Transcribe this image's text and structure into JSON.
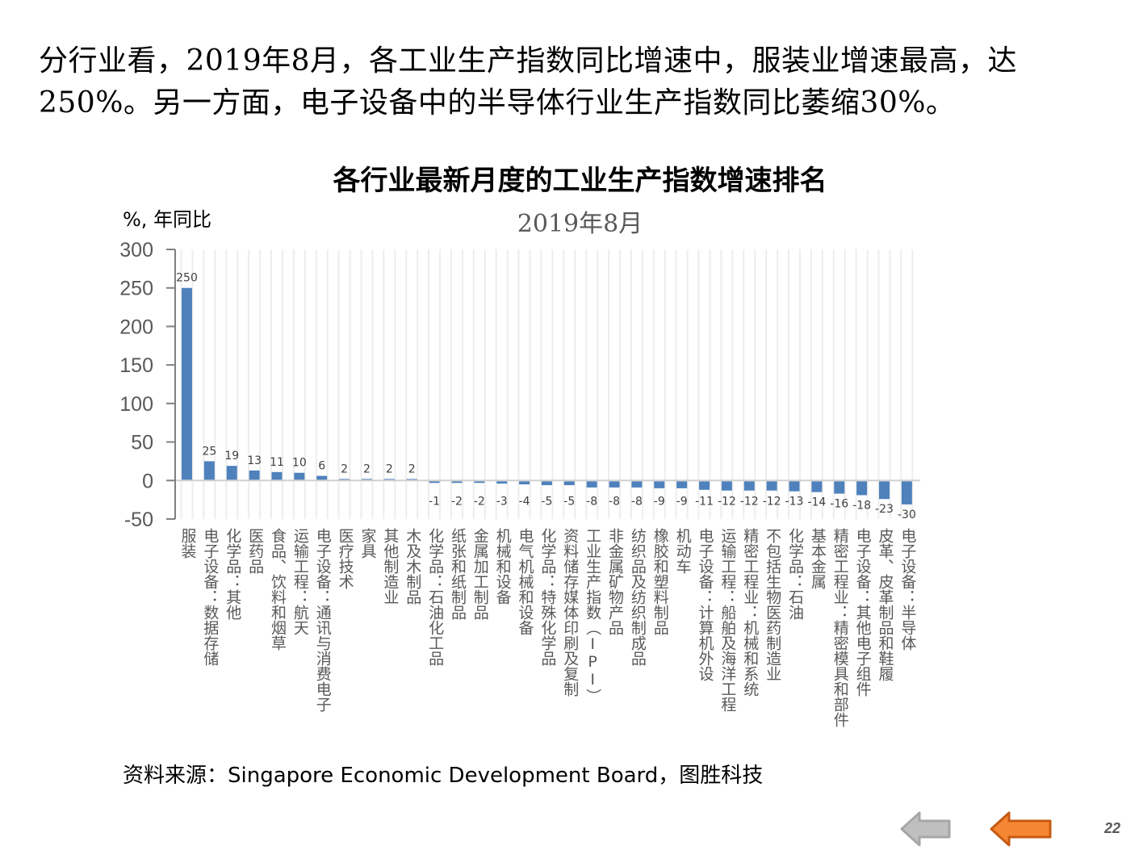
{
  "headline": {
    "line1": "分行业看，2019年8月，各工业生产指数同比增速中，服装业增速最高，达",
    "line2": "250%。另一方面，电子设备中的半导体行业生产指数同比萎缩30%。"
  },
  "chart_data": {
    "type": "bar",
    "title": "各行业最新月度的工业生产指数增速排名",
    "subtitle": "2019年8月",
    "ylabel": "%, 年同比",
    "xlabel": "",
    "ylim": [
      -50,
      300
    ],
    "yticks": [
      300,
      250,
      200,
      150,
      100,
      50,
      0,
      -50
    ],
    "ytick_labels": [
      "300",
      "250",
      "200",
      "150",
      "100",
      "50",
      "0",
      "-50"
    ],
    "grid": "vertical",
    "legend": "none",
    "bar_color": "#4f81bd",
    "categories": [
      "服装",
      "电子设备：数据存储",
      "化学品：其他",
      "医药品",
      "食品、饮料和烟草",
      "运输工程：航天",
      "电子设备：通讯与消费电子",
      "医疗技术",
      "家具",
      "其他制造业",
      "木及木制品",
      "化学品：石油化工品",
      "纸张和纸制品",
      "金属加工制品",
      "机械和设备",
      "电气机械和设备",
      "化学品：特殊化学品",
      "资料储存媒体印刷及复制",
      "工业生产指数（IPI）",
      "非金属矿物产品",
      "纺织品及纺织制成品",
      "橡胶和塑料制品",
      "机动车",
      "电子设备：计算机外设",
      "运输工程：船舶及海洋工程",
      "精密工程业：机械和系统",
      "不包括生物医药制造业",
      "化学品：石油",
      "基本金属",
      "精密工程业：精密模具和部件",
      "电子设备：其他电子组件",
      "皮革、皮革制品和鞋履",
      "电子设备：半导体"
    ],
    "values": [
      250,
      25,
      19,
      13,
      11,
      10,
      6,
      2,
      2,
      2,
      2,
      -1,
      -2,
      -2,
      -3,
      -4,
      -5,
      -5,
      -8,
      -8,
      -8,
      -9,
      -9,
      -11,
      -12,
      -12,
      -12,
      -13,
      -14,
      -16,
      -18,
      -23,
      -30
    ],
    "data_labels": [
      "250",
      "25",
      "19",
      "13",
      "11",
      "10",
      "6",
      "2",
      "2",
      "2",
      "2",
      "-1",
      "-2",
      "-2",
      "-3",
      "-4",
      "-5",
      "-5",
      "-8",
      "-8",
      "-8",
      "-9",
      "-9",
      "-11",
      "-12",
      "-12",
      "-12",
      "-13",
      "-14",
      "-16",
      "-18",
      "-23",
      "-30"
    ]
  },
  "source": "资料来源：Singapore Economic Development Board，图胜科技",
  "nav": {
    "prev_icon": "left-arrow-gray-icon",
    "back_icon": "left-arrow-orange-icon",
    "gray_color": "#a6a6a6",
    "orange_color": "#f58634"
  },
  "page_number": "22"
}
